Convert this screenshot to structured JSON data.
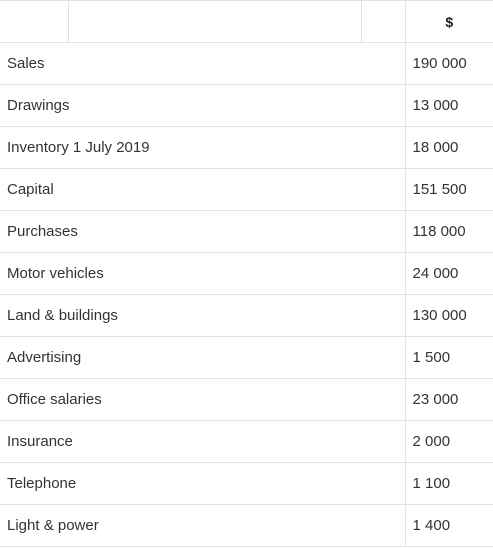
{
  "table": {
    "currency_header": "$",
    "rows": [
      {
        "label": "Sales",
        "amount": "190 000"
      },
      {
        "label": "Drawings",
        "amount": "13 000"
      },
      {
        "label": "Inventory 1 July 2019",
        "amount": "18 000"
      },
      {
        "label": "Capital",
        "amount": "151 500"
      },
      {
        "label": "Purchases",
        "amount": "118 000"
      },
      {
        "label": "Motor vehicles",
        "amount": "24 000"
      },
      {
        "label": "Land & buildings",
        "amount": "130 000"
      },
      {
        "label": "Advertising",
        "amount": "1 500"
      },
      {
        "label": "Office salaries",
        "amount": "23 000"
      },
      {
        "label": "Insurance",
        "amount": "2 000"
      },
      {
        "label": "Telephone",
        "amount": "1 100"
      },
      {
        "label": "Light & power",
        "amount": "1 400"
      }
    ]
  }
}
